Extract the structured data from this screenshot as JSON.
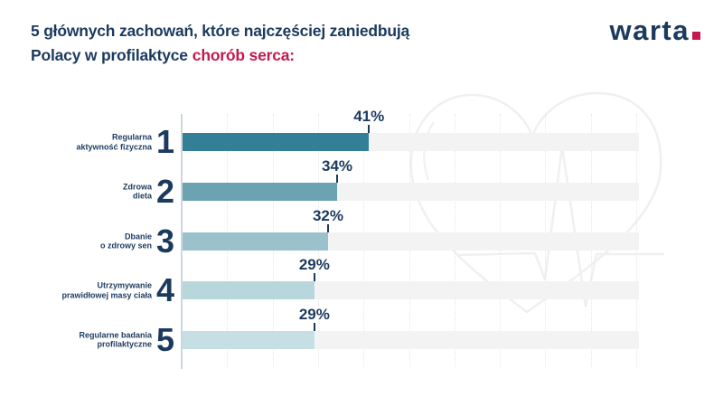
{
  "header": {
    "title_line1": "5 głównych zachowań, które najczęściej zaniedbują",
    "title_line2_normal": "Polacy w profilaktyce",
    "title_line2_highlight": "chorób serca:",
    "logo_text": "warta"
  },
  "chart_data": {
    "type": "bar",
    "orientation": "horizontal",
    "title": "5 głównych zachowań, które najczęściej zaniedbują Polacy w profilaktyce chorób serca:",
    "categories": [
      "Regularna aktywność fizyczna",
      "Zdrowa dieta",
      "Dbanie o zdrowy sen",
      "Utrzymywanie prawidłowej masy ciała",
      "Regularne badania profilaktyczne"
    ],
    "ranks": [
      "1",
      "2",
      "3",
      "4",
      "5"
    ],
    "values": [
      41,
      34,
      32,
      29,
      29
    ],
    "value_labels": [
      "41%",
      "34%",
      "32%",
      "29%",
      "29%"
    ],
    "xlim": [
      0,
      100
    ],
    "grid_step_pct": 10,
    "grid_style": "dotted vertical",
    "legend": "none",
    "bar_colors": [
      "#337f97",
      "#6ba3b3",
      "#9bc2cc",
      "#b7d7dd",
      "#c6dfe4"
    ],
    "track_color": "#f4f3f4",
    "watermark": "heart-ekg-outline"
  },
  "rows": [
    {
      "rank": "1",
      "label_line1": "Regularna",
      "label_line2": "aktywność fizyczna",
      "value_label": "41%"
    },
    {
      "rank": "2",
      "label_line1": "Zdrowa",
      "label_line2": "dieta",
      "value_label": "34%"
    },
    {
      "rank": "3",
      "label_line1": "Dbanie",
      "label_line2": "o zdrowy sen",
      "value_label": "32%"
    },
    {
      "rank": "4",
      "label_line1": "Utrzymywanie",
      "label_line2": "prawidłowej masy ciała",
      "value_label": "29%"
    },
    {
      "rank": "5",
      "label_line1": "Regularne badania",
      "label_line2": "profilaktyczne",
      "value_label": "29%"
    }
  ],
  "colors": {
    "navy": "#1b3a5e",
    "red": "#c3194e",
    "axis": "#cdd7dd",
    "gridline": "#e7e7ec",
    "watermark_stroke": "#f0eff1"
  }
}
